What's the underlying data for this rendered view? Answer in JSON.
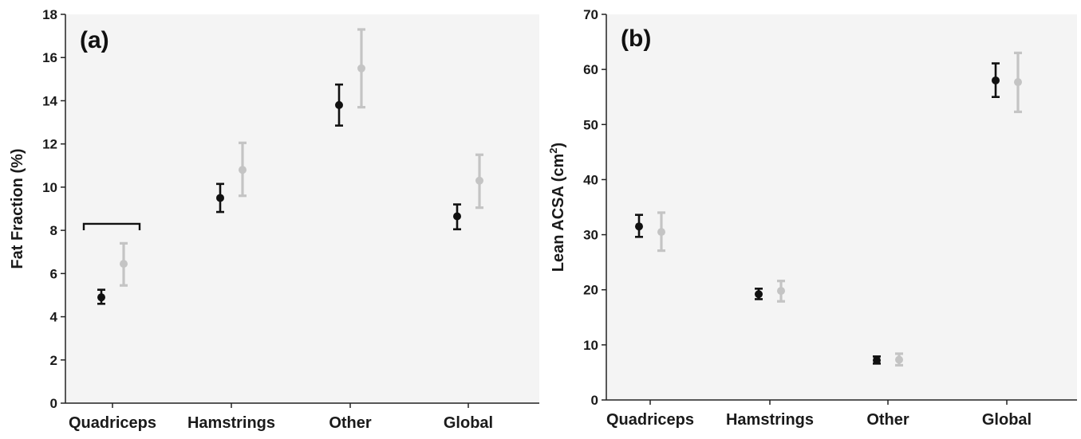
{
  "chart_data": [
    {
      "type": "scatter",
      "panel_label": "(a)",
      "ylabel": "Fat Fraction (%)",
      "xlabel": "",
      "categories": [
        "Quadriceps",
        "Hamstrings",
        "Other",
        "Global"
      ],
      "ylim": [
        0,
        18
      ],
      "yticks": [
        "0",
        "2",
        "4",
        "6",
        "8",
        "10",
        "12",
        "14",
        "16",
        "18"
      ],
      "grid": false,
      "series": [
        {
          "color": "#111111",
          "values": [
            4.9,
            9.5,
            13.8,
            8.65
          ],
          "err_low": [
            4.6,
            8.85,
            12.85,
            8.05
          ],
          "err_high": [
            5.25,
            10.15,
            14.75,
            9.2
          ]
        },
        {
          "color": "#c4c4c4",
          "values": [
            6.45,
            10.8,
            15.5,
            10.3
          ],
          "err_low": [
            5.45,
            9.6,
            13.7,
            9.05
          ],
          "err_high": [
            7.4,
            12.05,
            17.3,
            11.5
          ]
        }
      ],
      "bracket": {
        "y": 8.3,
        "from": "Quadriceps",
        "to": "Quadriceps"
      }
    },
    {
      "type": "scatter",
      "panel_label": "(b)",
      "ylabel": "Lean ACSA (cm",
      "ylabel_sup": "2",
      "ylabel_end": ")",
      "xlabel": "",
      "categories": [
        "Quadriceps",
        "Hamstrings",
        "Other",
        "Global"
      ],
      "ylim": [
        0,
        70
      ],
      "yticks": [
        "0",
        "10",
        "20",
        "30",
        "40",
        "50",
        "60",
        "70"
      ],
      "grid": false,
      "series": [
        {
          "color": "#111111",
          "values": [
            31.5,
            19.2,
            7.2,
            58.0
          ],
          "err_low": [
            29.6,
            18.3,
            6.6,
            55.0
          ],
          "err_high": [
            33.6,
            20.2,
            7.9,
            61.1
          ]
        },
        {
          "color": "#c4c4c4",
          "values": [
            30.5,
            19.8,
            7.3,
            57.7
          ],
          "err_low": [
            27.1,
            17.9,
            6.3,
            52.3
          ],
          "err_high": [
            34.0,
            21.6,
            8.4,
            63.0
          ]
        }
      ]
    }
  ]
}
